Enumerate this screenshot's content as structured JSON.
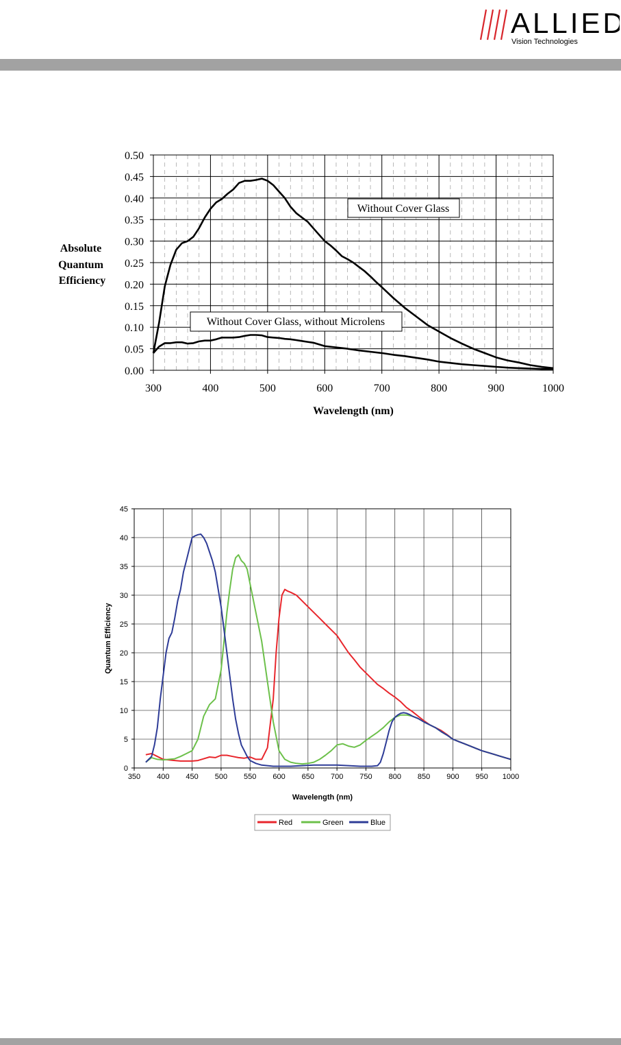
{
  "header": {
    "brand": "ALLIED",
    "tagline": "Vision Technologies",
    "colors": {
      "slashes": "#d8262c",
      "brand_text": "#8a8a8a",
      "bar": "#a2a2a2"
    }
  },
  "chart_data": [
    {
      "type": "line",
      "title": "",
      "xlabel": "Wavelength (nm)",
      "ylabel": "Absolute Quantum Efficiency",
      "ylabel_lines": [
        "Absolute",
        "Quantum",
        "Efficiency"
      ],
      "xlim": [
        300,
        1000
      ],
      "ylim": [
        0,
        0.5
      ],
      "xticks": [
        "300",
        "400",
        "500",
        "600",
        "700",
        "800",
        "900",
        "1000"
      ],
      "yticks": [
        "0.00",
        "0.05",
        "0.10",
        "0.15",
        "0.20",
        "0.25",
        "0.30",
        "0.35",
        "0.40",
        "0.45",
        "0.50"
      ],
      "grid": true,
      "annotations": [
        "Without Cover Glass",
        "Without Cover Glass, without Microlens"
      ],
      "series": [
        {
          "label": "Without Cover Glass",
          "color": "#000000",
          "x": [
            300,
            310,
            320,
            330,
            340,
            350,
            360,
            370,
            380,
            390,
            400,
            410,
            420,
            430,
            440,
            450,
            460,
            470,
            480,
            490,
            500,
            510,
            520,
            530,
            540,
            550,
            560,
            570,
            580,
            590,
            600,
            610,
            620,
            630,
            640,
            650,
            660,
            670,
            680,
            690,
            700,
            720,
            740,
            760,
            780,
            800,
            820,
            840,
            860,
            880,
            900,
            920,
            940,
            960,
            980,
            1000
          ],
          "y": [
            0.04,
            0.11,
            0.195,
            0.245,
            0.28,
            0.295,
            0.3,
            0.31,
            0.33,
            0.355,
            0.375,
            0.39,
            0.398,
            0.41,
            0.42,
            0.435,
            0.44,
            0.44,
            0.442,
            0.445,
            0.44,
            0.43,
            0.415,
            0.4,
            0.38,
            0.365,
            0.355,
            0.345,
            0.33,
            0.315,
            0.3,
            0.29,
            0.278,
            0.265,
            0.258,
            0.25,
            0.24,
            0.23,
            0.218,
            0.205,
            0.193,
            0.168,
            0.145,
            0.125,
            0.105,
            0.09,
            0.075,
            0.062,
            0.05,
            0.04,
            0.03,
            0.023,
            0.018,
            0.012,
            0.008,
            0.005
          ]
        },
        {
          "label": "Without Cover Glass, without Microlens",
          "color": "#000000",
          "x": [
            300,
            310,
            320,
            330,
            340,
            350,
            360,
            370,
            380,
            390,
            400,
            410,
            420,
            430,
            440,
            450,
            460,
            470,
            480,
            490,
            500,
            510,
            520,
            530,
            540,
            550,
            560,
            570,
            580,
            590,
            600,
            620,
            640,
            660,
            680,
            700,
            720,
            740,
            760,
            780,
            800,
            820,
            840,
            860,
            880,
            900,
            920,
            940,
            960,
            980,
            1000
          ],
          "y": [
            0.04,
            0.055,
            0.063,
            0.063,
            0.065,
            0.065,
            0.062,
            0.063,
            0.067,
            0.069,
            0.069,
            0.072,
            0.076,
            0.076,
            0.076,
            0.077,
            0.08,
            0.082,
            0.082,
            0.081,
            0.077,
            0.076,
            0.075,
            0.073,
            0.072,
            0.07,
            0.068,
            0.066,
            0.064,
            0.06,
            0.056,
            0.053,
            0.05,
            0.046,
            0.043,
            0.04,
            0.036,
            0.033,
            0.029,
            0.025,
            0.02,
            0.017,
            0.014,
            0.012,
            0.01,
            0.008,
            0.006,
            0.005,
            0.004,
            0.003,
            0.003
          ]
        }
      ]
    },
    {
      "type": "line",
      "title": "",
      "xlabel": "Wavelength (nm)",
      "ylabel": "Quantum Efficiency",
      "xlim": [
        350,
        1000
      ],
      "ylim": [
        0,
        45
      ],
      "xticks": [
        "350",
        "400",
        "450",
        "500",
        "550",
        "600",
        "650",
        "700",
        "750",
        "800",
        "850",
        "900",
        "950",
        "1000"
      ],
      "yticks": [
        "0",
        "5",
        "10",
        "15",
        "20",
        "25",
        "30",
        "35",
        "40",
        "45"
      ],
      "grid": true,
      "legend": "bottom-center",
      "series": [
        {
          "name": "Red",
          "color": "#e8262c",
          "x": [
            370,
            380,
            390,
            400,
            410,
            420,
            430,
            440,
            450,
            460,
            470,
            480,
            490,
            500,
            510,
            520,
            530,
            540,
            550,
            560,
            570,
            580,
            590,
            595,
            600,
            605,
            610,
            615,
            620,
            630,
            640,
            650,
            660,
            670,
            680,
            690,
            700,
            710,
            720,
            730,
            740,
            750,
            760,
            770,
            780,
            790,
            800,
            810,
            820,
            830,
            840,
            850,
            860,
            870,
            880,
            890,
            900,
            910,
            920,
            930,
            940,
            950,
            960,
            970,
            980,
            990,
            1000
          ],
          "y": [
            2.3,
            2.5,
            2.0,
            1.5,
            1.4,
            1.3,
            1.2,
            1.2,
            1.2,
            1.3,
            1.6,
            1.9,
            1.8,
            2.2,
            2.2,
            2.0,
            1.8,
            1.7,
            1.9,
            1.5,
            1.5,
            3.5,
            12.0,
            20.0,
            26.0,
            30.0,
            31.0,
            30.7,
            30.5,
            30.0,
            29.0,
            28.0,
            27.0,
            26.0,
            25.0,
            24.0,
            23.0,
            21.5,
            20.0,
            18.8,
            17.5,
            16.5,
            15.5,
            14.5,
            13.8,
            13.0,
            12.3,
            11.5,
            10.5,
            9.8,
            9.0,
            8.2,
            7.5,
            7.0,
            6.5,
            5.8,
            5.0,
            4.6,
            4.2,
            3.8,
            3.4,
            3.0,
            2.7,
            2.4,
            2.1,
            1.8,
            1.5
          ]
        },
        {
          "name": "Green",
          "color": "#6cc04a",
          "x": [
            370,
            380,
            390,
            400,
            410,
            420,
            430,
            440,
            450,
            460,
            470,
            480,
            490,
            500,
            505,
            510,
            515,
            520,
            525,
            530,
            535,
            540,
            545,
            550,
            560,
            570,
            580,
            590,
            600,
            610,
            620,
            630,
            640,
            650,
            660,
            670,
            680,
            690,
            700,
            710,
            720,
            730,
            740,
            750,
            760,
            770,
            780,
            790,
            800,
            810,
            820,
            830,
            840,
            850,
            860,
            870,
            880,
            890,
            900,
            910,
            920,
            930,
            940,
            950,
            960,
            970,
            980,
            990,
            1000
          ],
          "y": [
            1.0,
            1.8,
            1.5,
            1.4,
            1.5,
            1.6,
            2.0,
            2.5,
            3.0,
            5.0,
            9.0,
            11.0,
            12.0,
            17.0,
            22.0,
            27.0,
            31.0,
            34.5,
            36.5,
            37.0,
            36.0,
            35.5,
            34.5,
            32.0,
            27.0,
            22.0,
            15.0,
            8.0,
            3.0,
            1.5,
            1.0,
            0.8,
            0.7,
            0.8,
            1.0,
            1.5,
            2.2,
            3.0,
            4.0,
            4.2,
            3.8,
            3.6,
            4.0,
            4.8,
            5.5,
            6.2,
            7.0,
            8.0,
            8.8,
            9.2,
            9.2,
            9.0,
            8.6,
            8.0,
            7.5,
            7.0,
            6.3,
            5.7,
            5.0,
            4.6,
            4.2,
            3.8,
            3.4,
            3.0,
            2.7,
            2.4,
            2.1,
            1.8,
            1.5
          ]
        },
        {
          "name": "Blue",
          "color": "#2e3c97",
          "x": [
            370,
            375,
            380,
            385,
            390,
            395,
            400,
            405,
            410,
            415,
            420,
            425,
            430,
            435,
            440,
            445,
            450,
            455,
            460,
            465,
            470,
            475,
            480,
            485,
            490,
            495,
            500,
            505,
            510,
            515,
            520,
            525,
            530,
            535,
            540,
            545,
            550,
            560,
            570,
            580,
            590,
            600,
            620,
            640,
            660,
            680,
            700,
            720,
            740,
            760,
            770,
            775,
            780,
            785,
            790,
            795,
            800,
            805,
            810,
            815,
            820,
            825,
            830,
            840,
            850,
            860,
            870,
            880,
            890,
            900,
            910,
            920,
            930,
            940,
            950,
            960,
            970,
            980,
            990,
            1000
          ],
          "y": [
            1.0,
            1.5,
            2.0,
            4.0,
            7.0,
            12.0,
            16.0,
            20.0,
            22.5,
            23.5,
            26.0,
            29.0,
            31.0,
            34.0,
            36.0,
            38.0,
            40.0,
            40.3,
            40.5,
            40.6,
            40.0,
            39.0,
            37.5,
            36.0,
            34.0,
            31.0,
            28.0,
            24.0,
            20.0,
            16.0,
            12.0,
            8.5,
            6.0,
            4.0,
            3.0,
            2.0,
            1.3,
            0.8,
            0.5,
            0.4,
            0.3,
            0.3,
            0.3,
            0.4,
            0.5,
            0.5,
            0.5,
            0.4,
            0.3,
            0.3,
            0.4,
            1.0,
            2.5,
            4.5,
            6.5,
            8.0,
            8.8,
            9.2,
            9.5,
            9.6,
            9.5,
            9.3,
            9.0,
            8.6,
            8.0,
            7.5,
            7.0,
            6.3,
            5.7,
            5.0,
            4.6,
            4.2,
            3.8,
            3.4,
            3.0,
            2.7,
            2.4,
            2.1,
            1.8,
            1.5
          ]
        }
      ]
    }
  ]
}
